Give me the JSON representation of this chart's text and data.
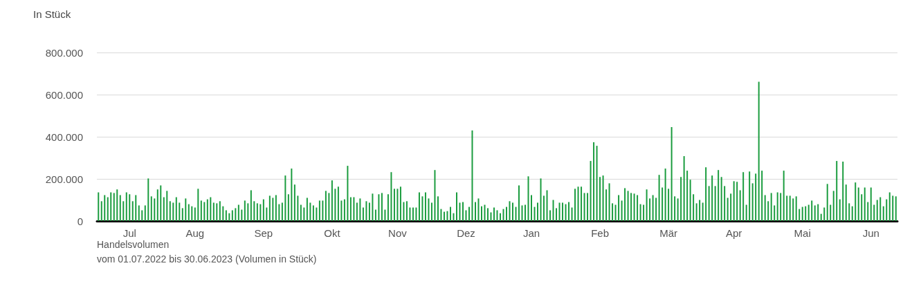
{
  "chart_data": {
    "type": "bar",
    "ylabel": "In Stück",
    "color": "#1a9c3e",
    "grid": "y",
    "ylim": [
      0,
      800000
    ],
    "yticks": [
      0,
      {
        "value": 200000,
        "label": "200.000"
      },
      {
        "value": 400000,
        "label": "400.000"
      },
      {
        "value": 600000,
        "label": "600.000"
      },
      {
        "value": 800000,
        "label": "800.000"
      }
    ],
    "annotations": [
      "Handelsvolumen",
      "vom 01.07.2022 bis 30.06.2023 (Volumen in Stück)"
    ],
    "categories": [
      null,
      null,
      null,
      null,
      null,
      null,
      null,
      null,
      null,
      null,
      "Jul",
      null,
      null,
      null,
      null,
      null,
      null,
      null,
      null,
      null,
      null,
      null,
      null,
      null,
      null,
      null,
      null,
      null,
      null,
      null,
      null,
      "Aug",
      null,
      null,
      null,
      null,
      null,
      null,
      null,
      null,
      null,
      null,
      null,
      null,
      null,
      null,
      null,
      null,
      null,
      null,
      null,
      null,
      null,
      "Sep",
      null,
      null,
      null,
      null,
      null,
      null,
      null,
      null,
      null,
      null,
      null,
      null,
      null,
      null,
      null,
      null,
      null,
      null,
      null,
      null,
      null,
      "Okt",
      null,
      null,
      null,
      null,
      null,
      null,
      null,
      null,
      null,
      null,
      null,
      null,
      null,
      null,
      null,
      null,
      null,
      null,
      null,
      null,
      "Nov",
      null,
      null,
      null,
      null,
      null,
      null,
      null,
      null,
      null,
      null,
      null,
      null,
      null,
      null,
      null,
      null,
      null,
      null,
      null,
      null,
      null,
      "Dez",
      null,
      null,
      null,
      null,
      null,
      null,
      null,
      null,
      null,
      null,
      null,
      null,
      null,
      null,
      null,
      null,
      null,
      null,
      null,
      null,
      "Jan",
      null,
      null,
      null,
      null,
      null,
      null,
      null,
      null,
      null,
      null,
      null,
      null,
      null,
      null,
      null,
      null,
      null,
      null,
      null,
      null,
      null,
      "Feb",
      null,
      null,
      null,
      null,
      null,
      null,
      null,
      null,
      null,
      null,
      null,
      null,
      null,
      null,
      null,
      null,
      null,
      null,
      null,
      null,
      null,
      "Mär",
      null,
      null,
      null,
      null,
      null,
      null,
      null,
      null,
      null,
      null,
      null,
      null,
      null,
      null,
      null,
      null,
      null,
      null,
      null,
      null,
      "Apr",
      null,
      null,
      null,
      null,
      null,
      null,
      null,
      null,
      null,
      null,
      null,
      null,
      null,
      null,
      null,
      null,
      null,
      null,
      null,
      null,
      null,
      "Mai",
      null,
      null,
      null,
      null,
      null,
      null,
      null,
      null,
      null,
      null,
      null,
      null,
      null,
      null,
      null,
      null,
      null,
      null,
      null,
      null,
      null,
      "Jun",
      null,
      null,
      null,
      null,
      null,
      null,
      null,
      null
    ],
    "values": [
      136000,
      94000,
      123000,
      113000,
      136000,
      133000,
      150000,
      123000,
      94000,
      136000,
      127000,
      94000,
      123000,
      74000,
      51000,
      74000,
      202000,
      117000,
      107000,
      150000,
      169000,
      113000,
      143000,
      94000,
      87000,
      113000,
      87000,
      61000,
      107000,
      80000,
      70000,
      64000,
      153000,
      97000,
      90000,
      103000,
      113000,
      87000,
      84000,
      94000,
      70000,
      51000,
      37000,
      51000,
      61000,
      77000,
      54000,
      97000,
      84000,
      146000,
      94000,
      84000,
      80000,
      103000,
      64000,
      120000,
      110000,
      123000,
      80000,
      87000,
      216000,
      127000,
      249000,
      173000,
      120000,
      77000,
      64000,
      110000,
      87000,
      74000,
      64000,
      97000,
      97000,
      143000,
      133000,
      193000,
      153000,
      163000,
      97000,
      103000,
      262000,
      113000,
      113000,
      87000,
      107000,
      64000,
      94000,
      87000,
      130000,
      54000,
      127000,
      133000,
      54000,
      127000,
      232000,
      153000,
      153000,
      163000,
      90000,
      94000,
      64000,
      64000,
      64000,
      136000,
      117000,
      136000,
      107000,
      87000,
      242000,
      117000,
      57000,
      44000,
      47000,
      67000,
      37000,
      136000,
      87000,
      90000,
      51000,
      67000,
      430000,
      90000,
      107000,
      70000,
      77000,
      61000,
      41000,
      64000,
      51000,
      37000,
      57000,
      67000,
      94000,
      87000,
      67000,
      169000,
      74000,
      77000,
      212000,
      123000,
      67000,
      87000,
      202000,
      120000,
      146000,
      51000,
      100000,
      61000,
      87000,
      87000,
      80000,
      90000,
      64000,
      153000,
      163000,
      163000,
      133000,
      133000,
      285000,
      374000,
      357000,
      209000,
      216000,
      150000,
      179000,
      84000,
      77000,
      123000,
      97000,
      156000,
      143000,
      133000,
      130000,
      123000,
      80000,
      77000,
      150000,
      107000,
      123000,
      110000,
      219000,
      159000,
      249000,
      153000,
      446000,
      117000,
      107000,
      209000,
      308000,
      239000,
      196000,
      127000,
      84000,
      100000,
      87000,
      255000,
      166000,
      216000,
      166000,
      242000,
      209000,
      166000,
      110000,
      130000,
      189000,
      186000,
      146000,
      232000,
      77000,
      235000,
      179000,
      225000,
      661000,
      239000,
      123000,
      94000,
      133000,
      74000,
      136000,
      133000,
      239000,
      120000,
      120000,
      107000,
      117000,
      57000,
      67000,
      70000,
      77000,
      97000,
      74000,
      80000,
      34000,
      64000,
      176000,
      77000,
      143000,
      285000,
      103000,
      282000,
      173000,
      84000,
      70000,
      183000,
      159000,
      127000,
      159000,
      90000,
      159000,
      77000,
      100000,
      113000,
      70000,
      103000,
      136000,
      120000,
      117000
    ]
  }
}
